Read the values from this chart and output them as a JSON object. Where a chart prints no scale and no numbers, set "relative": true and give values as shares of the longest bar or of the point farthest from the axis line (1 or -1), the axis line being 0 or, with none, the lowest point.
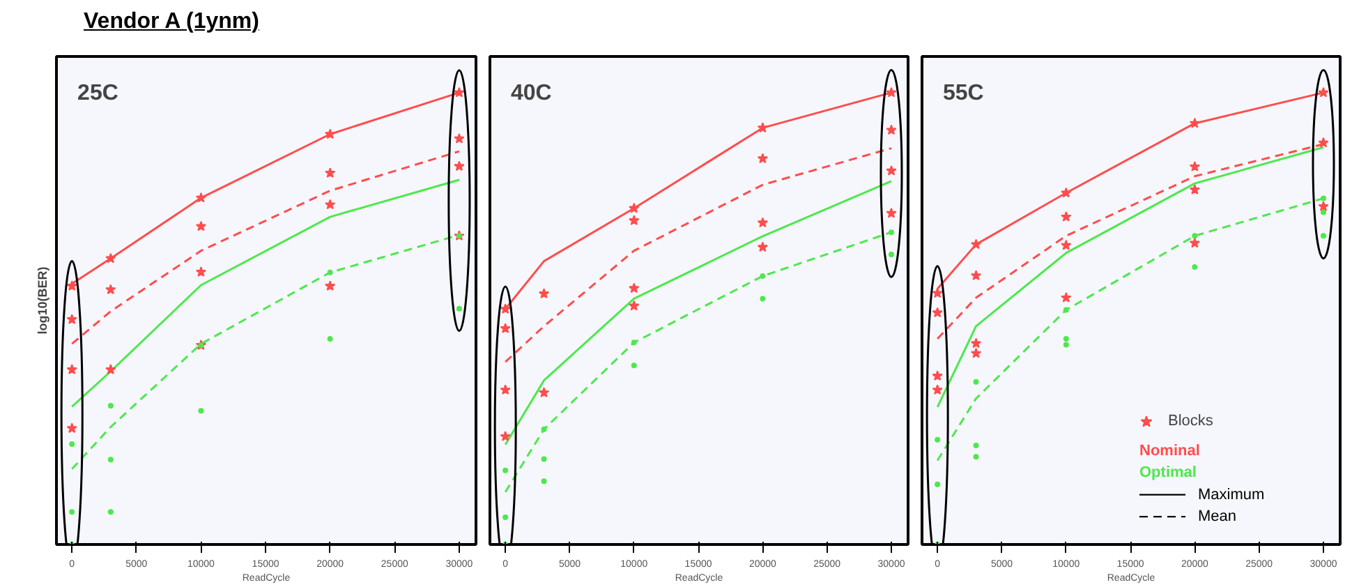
{
  "chart_data": [
    {
      "type": "line",
      "title": "25C",
      "xlabel": "ReadCycle",
      "ylabel": "log10(BER)",
      "relative": true,
      "annotations": [
        "Vendor A (1ynm)"
      ],
      "x": [
        0,
        3000,
        10000,
        20000,
        30000
      ],
      "xlim": [
        -1200,
        31300
      ],
      "xticks": [
        0,
        5000,
        10000,
        15000,
        20000,
        25000,
        30000
      ],
      "series": [
        {
          "color": "#ff4d4d",
          "line_style": "solid",
          "values": [
            0.577,
            0.633,
            0.767,
            0.908,
            1.0
          ]
        },
        {
          "color": "#ff4d4d",
          "line_style": "dashed",
          "values": [
            0.444,
            0.516,
            0.65,
            0.783,
            0.87
          ]
        },
        {
          "color": "#4de84d",
          "line_style": "solid",
          "values": [
            0.305,
            0.383,
            0.574,
            0.725,
            0.807
          ]
        },
        {
          "color": "#4de84d",
          "line_style": "dashed",
          "values": [
            0.167,
            0.26,
            0.444,
            0.602,
            0.685
          ]
        },
        {
          "type": "scatter",
          "marker": "star",
          "color": "#ff4d4d",
          "x": [
            0,
            0,
            0,
            0,
            3000,
            3000,
            3000,
            10000,
            10000,
            10000,
            10000,
            20000,
            20000,
            20000,
            20000,
            30000,
            30000,
            30000,
            30000
          ],
          "values": [
            0.572,
            0.498,
            0.387,
            0.257,
            0.633,
            0.564,
            0.387,
            0.767,
            0.704,
            0.603,
            0.441,
            0.908,
            0.822,
            0.752,
            0.572,
            1.0,
            0.898,
            0.837,
            0.683
          ]
        },
        {
          "type": "scatter",
          "marker": "circle",
          "color": "#4de84d",
          "x": [
            0,
            0,
            0,
            3000,
            3000,
            3000,
            10000,
            10000,
            20000,
            20000,
            30000,
            30000
          ],
          "values": [
            0.222,
            0.072,
            0.0,
            0.307,
            0.188,
            0.072,
            0.441,
            0.296,
            0.602,
            0.455,
            0.683,
            0.522
          ]
        }
      ]
    },
    {
      "type": "line",
      "title": "40C",
      "xlabel": "ReadCycle",
      "relative": true,
      "x": [
        0,
        3000,
        10000,
        20000,
        30000
      ],
      "xlim": [
        -1200,
        31300
      ],
      "xticks": [
        0,
        5000,
        10000,
        15000,
        20000,
        25000,
        30000
      ],
      "series": [
        {
          "color": "#ff4d4d",
          "line_style": "solid",
          "values": [
            0.521,
            0.627,
            0.744,
            0.922,
            1.0
          ]
        },
        {
          "color": "#ff4d4d",
          "line_style": "dashed",
          "values": [
            0.404,
            0.483,
            0.65,
            0.796,
            0.877
          ]
        },
        {
          "color": "#4de84d",
          "line_style": "solid",
          "values": [
            0.221,
            0.363,
            0.544,
            0.682,
            0.804
          ]
        },
        {
          "color": "#4de84d",
          "line_style": "dashed",
          "values": [
            0.116,
            0.255,
            0.447,
            0.594,
            0.691
          ]
        },
        {
          "type": "scatter",
          "marker": "star",
          "color": "#ff4d4d",
          "x": [
            0,
            0,
            0,
            0,
            3000,
            3000,
            10000,
            10000,
            10000,
            10000,
            20000,
            20000,
            20000,
            20000,
            30000,
            30000,
            30000,
            30000
          ],
          "values": [
            0.521,
            0.478,
            0.342,
            0.239,
            0.555,
            0.336,
            0.744,
            0.717,
            0.567,
            0.528,
            0.922,
            0.854,
            0.712,
            0.658,
            1.0,
            0.917,
            0.827,
            0.733
          ]
        },
        {
          "type": "scatter",
          "marker": "circle",
          "color": "#4de84d",
          "x": [
            0,
            0,
            0,
            3000,
            3000,
            3000,
            10000,
            10000,
            20000,
            20000,
            30000,
            30000
          ],
          "values": [
            0.164,
            0.06,
            0.0,
            0.255,
            0.189,
            0.14,
            0.447,
            0.396,
            0.594,
            0.544,
            0.691,
            0.642
          ]
        }
      ]
    },
    {
      "type": "line",
      "title": "55C",
      "xlabel": "ReadCycle",
      "relative": true,
      "legend": "bottom right",
      "annotations": [
        "Nominal",
        "Optimal",
        "Maximum",
        "Mean"
      ],
      "x": [
        0,
        3000,
        10000,
        20000,
        30000
      ],
      "xlim": [
        -1200,
        31300
      ],
      "xticks": [
        0,
        5000,
        10000,
        15000,
        20000,
        25000,
        30000
      ],
      "series": [
        {
          "color": "#ff4d4d",
          "line_style": "solid",
          "values": [
            0.566,
            0.664,
            0.778,
            0.932,
            1.0
          ]
        },
        {
          "color": "#ff4d4d",
          "line_style": "dashed",
          "values": [
            0.455,
            0.546,
            0.683,
            0.815,
            0.886
          ]
        },
        {
          "color": "#4de84d",
          "line_style": "solid",
          "values": [
            0.304,
            0.483,
            0.645,
            0.799,
            0.879
          ]
        },
        {
          "color": "#4de84d",
          "line_style": "dashed",
          "values": [
            0.186,
            0.323,
            0.519,
            0.683,
            0.766
          ]
        },
        {
          "type": "scatter",
          "name": "Blocks",
          "marker": "star",
          "color": "#ff4d4d",
          "x": [
            0,
            0,
            0,
            0,
            3000,
            3000,
            3000,
            3000,
            10000,
            10000,
            10000,
            10000,
            20000,
            20000,
            20000,
            20000,
            30000,
            30000,
            30000
          ],
          "values": [
            0.556,
            0.513,
            0.373,
            0.342,
            0.664,
            0.595,
            0.445,
            0.423,
            0.778,
            0.725,
            0.662,
            0.546,
            0.932,
            0.836,
            0.785,
            0.667,
            1.0,
            0.889,
            0.748
          ]
        },
        {
          "type": "scatter",
          "marker": "circle",
          "color": "#4de84d",
          "x": [
            0,
            0,
            0,
            3000,
            3000,
            3000,
            10000,
            10000,
            10000,
            20000,
            20000,
            30000,
            30000,
            30000
          ],
          "values": [
            0.232,
            0.133,
            0.0,
            0.36,
            0.219,
            0.194,
            0.519,
            0.455,
            0.442,
            0.683,
            0.614,
            0.766,
            0.735,
            0.683
          ]
        }
      ]
    }
  ]
}
